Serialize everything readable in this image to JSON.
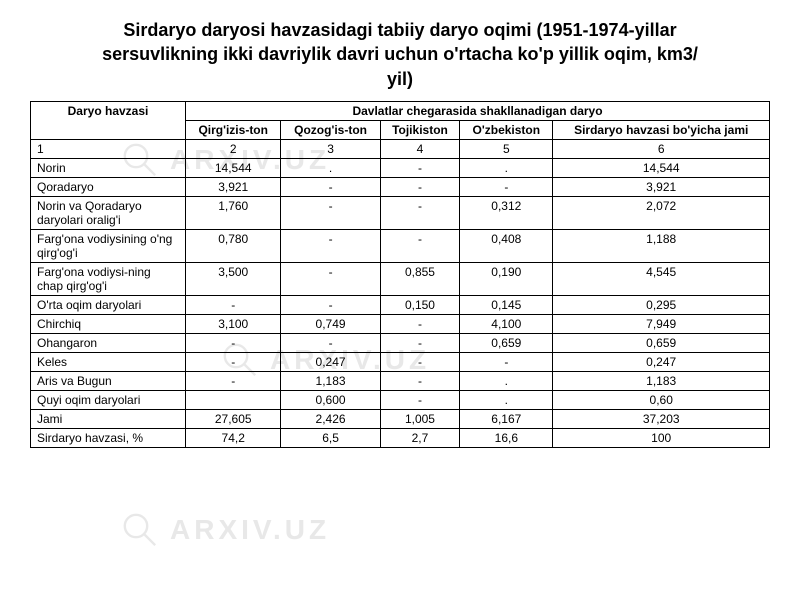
{
  "title_lines": [
    "Sirdaryo daryosi havzasidagi tabiiy daryo oqimi (1951-1974-yillar",
    "sersuvlikning ikki davriylik davri uchun o'rtacha ko'p yillik oqim, km3/",
    "yil)"
  ],
  "watermark_text": "ARXIV.UZ",
  "table": {
    "header_row1_col1": "Daryo havzasi",
    "header_row1_merged": "Davlatlar chegarasida shakllanadigan daryo",
    "header_row2": [
      "Qirg'izis-ton",
      "Qozog'is-ton",
      "Tojikiston",
      "O'zbekiston",
      "Sirdaryo havzasi bo'yicha jami"
    ],
    "index_row": [
      "1",
      "2",
      "3",
      "4",
      "5",
      "6"
    ],
    "rows": [
      {
        "label": "Norin",
        "cells": [
          "14,544",
          ".",
          "-",
          ".",
          "14,544"
        ]
      },
      {
        "label": "Qoradaryo",
        "cells": [
          "3,921",
          "-",
          "-",
          "-",
          "3,921"
        ]
      },
      {
        "label": "Norin va Qoradaryo daryolari oralig'i",
        "cells": [
          "1,760",
          "-",
          "-",
          "0,312",
          "2,072"
        ]
      },
      {
        "label": "Farg'ona vodiysining o'ng qirg'og'i",
        "cells": [
          "0,780",
          "-",
          "-",
          "0,408",
          "1,188"
        ]
      },
      {
        "label": "Farg'ona vodiysi-ning chap qirg'og'i",
        "cells": [
          "3,500",
          "-",
          "0,855",
          "0,190",
          "4,545"
        ]
      },
      {
        "label": "O'rta oqim daryolari",
        "cells": [
          "-",
          "-",
          "0,150",
          "0,145",
          "0,295"
        ]
      },
      {
        "label": "Chirchiq",
        "cells": [
          "3,100",
          "0,749",
          "-",
          "4,100",
          "7,949"
        ]
      },
      {
        "label": "Ohangaron",
        "cells": [
          "-",
          "-",
          "-",
          "0,659",
          "0,659"
        ]
      },
      {
        "label": "Keles",
        "cells": [
          "-",
          "0,247",
          "-",
          "-",
          "0,247"
        ]
      },
      {
        "label": "Aris va Bugun",
        "cells": [
          "-",
          "1,183",
          "-",
          ".",
          "1,183"
        ]
      },
      {
        "label": "Quyi oqim daryolari",
        "cells": [
          "",
          "0,600",
          "-",
          ".",
          "0,60"
        ]
      },
      {
        "label": "Jami",
        "cells": [
          "27,605",
          "2,426",
          "1,005",
          "6,167",
          "37,203"
        ]
      },
      {
        "label": "Sirdaryo havzasi, %",
        "cells": [
          "74,2",
          "6,5",
          "2,7",
          "16,6",
          "100"
        ]
      }
    ]
  },
  "style": {
    "title_fontsize": 18,
    "table_fontsize": 12,
    "border_color": "#000000",
    "background_color": "#ffffff",
    "watermark_color": "#e8e8e8"
  }
}
